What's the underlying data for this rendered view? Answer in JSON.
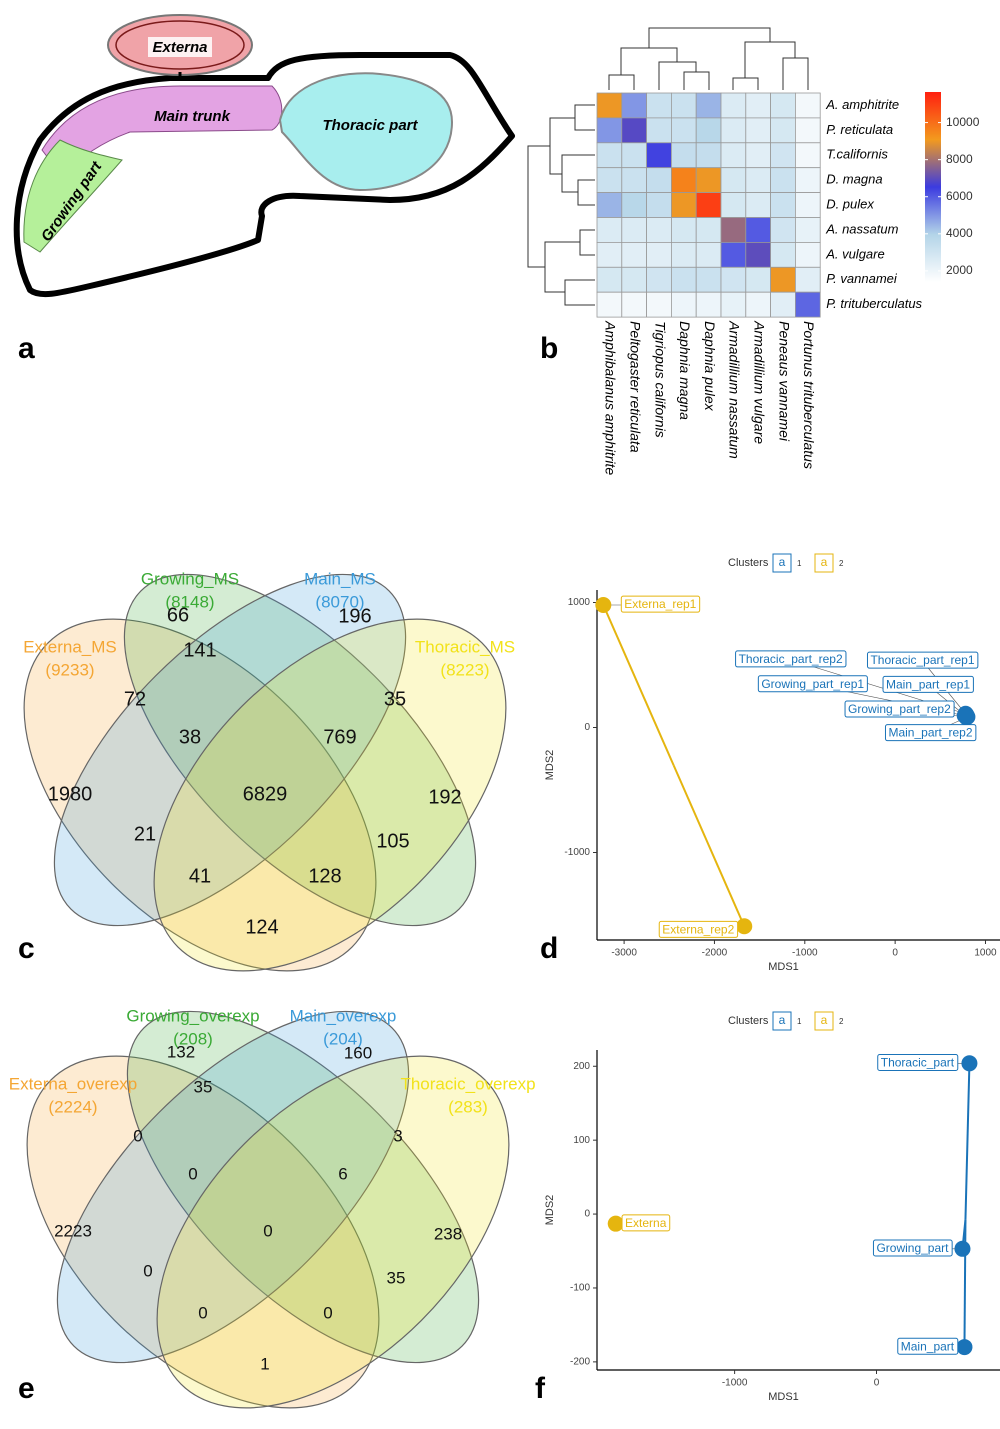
{
  "diagram": {
    "panel_label": "a",
    "labels": [
      "Externa",
      "Main trunk",
      "Thoracic part",
      "Growing part"
    ]
  },
  "chart_data": [
    {
      "type": "heatmap",
      "panel_label": "b",
      "row_labels": [
        "A. amphitrite",
        "P. reticulata",
        "T.californis",
        "D. magna",
        "D. pulex",
        "A. nassatum",
        "A. vulgare",
        "P. vannamei",
        "P. trituberculatus"
      ],
      "categories": [
        "Amphibalanus amphitrite",
        "Peltogaster reticulata",
        "Tigriopus californis",
        "Daphnia magna",
        "Daphnia pulex",
        "Armadillium nassatum",
        "Armadillium vulgare",
        "Peneaus vannamei",
        "Portunus trituberculatus"
      ],
      "values": [
        [
          9000,
          5000,
          3200,
          3200,
          4500,
          2600,
          2400,
          2800,
          1800
        ],
        [
          5000,
          6900,
          3200,
          3200,
          3800,
          2600,
          2400,
          2800,
          1800
        ],
        [
          3200,
          3200,
          6400,
          3400,
          3400,
          2600,
          2400,
          3000,
          1800
        ],
        [
          3200,
          3200,
          3400,
          9600,
          9000,
          2800,
          2600,
          3200,
          2000
        ],
        [
          4500,
          3800,
          3400,
          9000,
          11000,
          2800,
          2600,
          3200,
          2000
        ],
        [
          2600,
          2600,
          2600,
          2800,
          2800,
          7800,
          6000,
          3000,
          2200
        ],
        [
          2400,
          2400,
          2400,
          2600,
          2600,
          6000,
          7000,
          2800,
          2000
        ],
        [
          2800,
          2800,
          3000,
          3200,
          3200,
          3000,
          2800,
          9000,
          2400
        ],
        [
          1800,
          1800,
          1800,
          2000,
          2000,
          2200,
          2000,
          2400,
          5800
        ]
      ],
      "colorscale": [
        "#ffffff",
        "#b3d4e8",
        "#3b3be0",
        "#f39a1e",
        "#ff2010"
      ],
      "clim": [
        1400,
        11650
      ],
      "cticks": [
        2000,
        4000,
        6000,
        8000,
        10000
      ]
    },
    {
      "type": "venn",
      "panel_label": "c",
      "sets": [
        {
          "name": "Externa_MS",
          "count_label": "(9233)",
          "color": "#f4a634"
        },
        {
          "name": "Growing_MS",
          "count_label": "(8148)",
          "color": "#3aaa35"
        },
        {
          "name": "Main_MS",
          "count_label": "(8070)",
          "color": "#3a9ad9"
        },
        {
          "name": "Thoracic_MS",
          "count_label": "(8223)",
          "color": "#f2e21a"
        }
      ],
      "values": [
        1980,
        66,
        196,
        192,
        72,
        141,
        35,
        38,
        769,
        6829,
        21,
        105,
        41,
        128,
        124
      ]
    },
    {
      "type": "scatter",
      "panel_label": "d",
      "xlabel": "MDS1",
      "ylabel": "MDS2",
      "xlim": [
        -3300,
        1050
      ],
      "ylim": [
        -1700,
        1100
      ],
      "xticks": [
        -3000,
        -2000,
        -1000,
        0,
        1000
      ],
      "yticks": [
        -1000,
        0,
        1000
      ],
      "legend_title": "Clusters",
      "legend_key": "a",
      "series": [
        {
          "name": "1",
          "color": "#1a73b8",
          "labels": [
            "Thoracic_part_rep2",
            "Thoracic_part_rep1",
            "Growing_part_rep1",
            "Main_part_rep1",
            "Growing_part_rep2",
            "Main_part_rep2"
          ],
          "x": [
            780,
            790,
            770,
            785,
            800,
            790
          ],
          "y": [
            110,
            100,
            95,
            90,
            85,
            80
          ]
        },
        {
          "name": "2",
          "color": "#e5b50f",
          "labels": [
            "Externa_rep1",
            "Externa_rep2"
          ],
          "x": [
            -3230,
            -1670
          ],
          "y": [
            980,
            -1590
          ]
        }
      ]
    },
    {
      "type": "venn",
      "panel_label": "e",
      "sets": [
        {
          "name": "Externa_overexp",
          "count_label": "(2224)",
          "color": "#f4a634"
        },
        {
          "name": "Growing_overexp",
          "count_label": "(208)",
          "color": "#3aaa35"
        },
        {
          "name": "Main_overexp",
          "count_label": "(204)",
          "color": "#3a9ad9"
        },
        {
          "name": "Thoracic_overexp",
          "count_label": "(283)",
          "color": "#f2e21a"
        }
      ],
      "values": [
        2223,
        132,
        160,
        238,
        0,
        35,
        3,
        0,
        6,
        0,
        0,
        35,
        0,
        0,
        1
      ]
    },
    {
      "type": "scatter",
      "panel_label": "f",
      "xlabel": "MDS1",
      "ylabel": "MDS2",
      "xlim": [
        -1970,
        800
      ],
      "ylim": [
        -211,
        222
      ],
      "xticks": [
        -1000,
        0
      ],
      "yticks": [
        -200,
        -100,
        0,
        100,
        200
      ],
      "legend_title": "Clusters",
      "legend_key": "a",
      "series": [
        {
          "name": "1",
          "color": "#1a73b8",
          "labels": [
            "Thoracic_part",
            "Growing_part",
            "Main_part"
          ],
          "x": [
            655,
            606,
            620
          ],
          "y": [
            204,
            -47,
            -180
          ]
        },
        {
          "name": "2",
          "color": "#e5b50f",
          "labels": [
            "Externa"
          ],
          "x": [
            -1838
          ],
          "y": [
            -13
          ]
        }
      ]
    }
  ]
}
